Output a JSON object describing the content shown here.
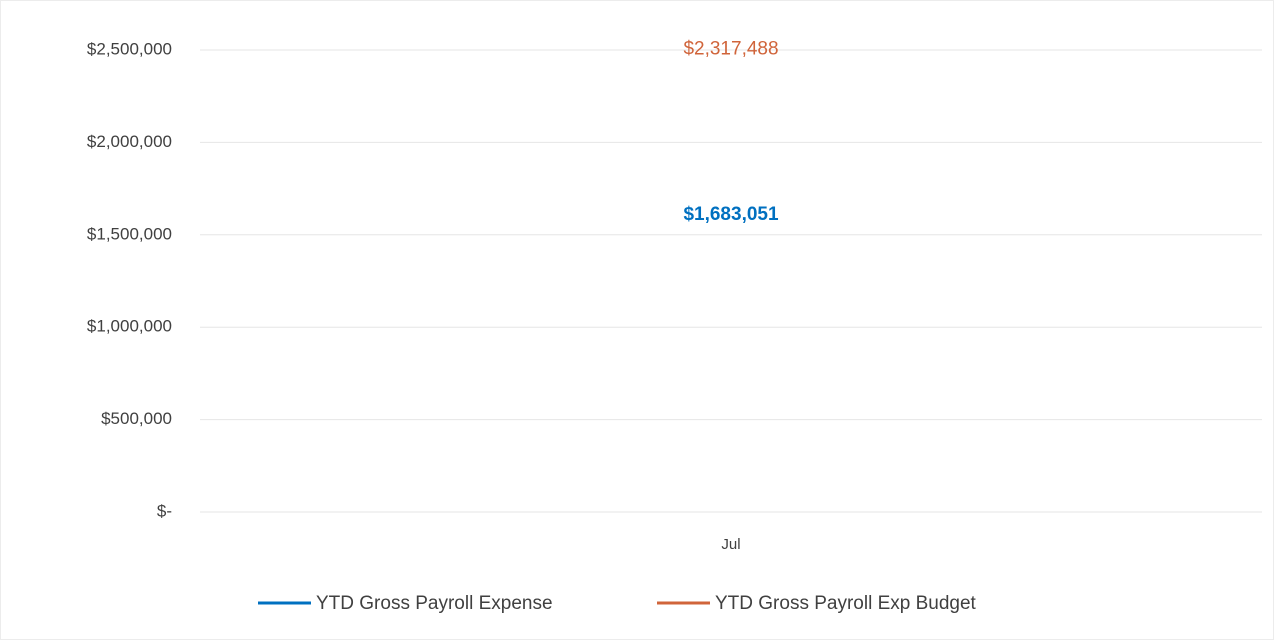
{
  "chart_data": {
    "type": "line",
    "categories": [
      "Jul"
    ],
    "series": [
      {
        "name": "YTD Gross Payroll Expense",
        "color": "#0070c0",
        "values": [
          1683051
        ],
        "value_labels": [
          "$1,683,051"
        ]
      },
      {
        "name": "YTD Gross Payroll Exp Budget",
        "color": "#d0643a",
        "values": [
          2317488
        ],
        "value_labels": [
          "$2,317,488"
        ]
      }
    ],
    "ylim": [
      0,
      2500000
    ],
    "yticks": [
      {
        "value": 0,
        "label": "$-"
      },
      {
        "value": 500000,
        "label": "$500,000"
      },
      {
        "value": 1000000,
        "label": "$1,000,000"
      },
      {
        "value": 1500000,
        "label": "$1,500,000"
      },
      {
        "value": 2000000,
        "label": "$2,000,000"
      },
      {
        "value": 2500000,
        "label": "$2,500,000"
      }
    ],
    "grid": true,
    "legend": "bottom"
  }
}
